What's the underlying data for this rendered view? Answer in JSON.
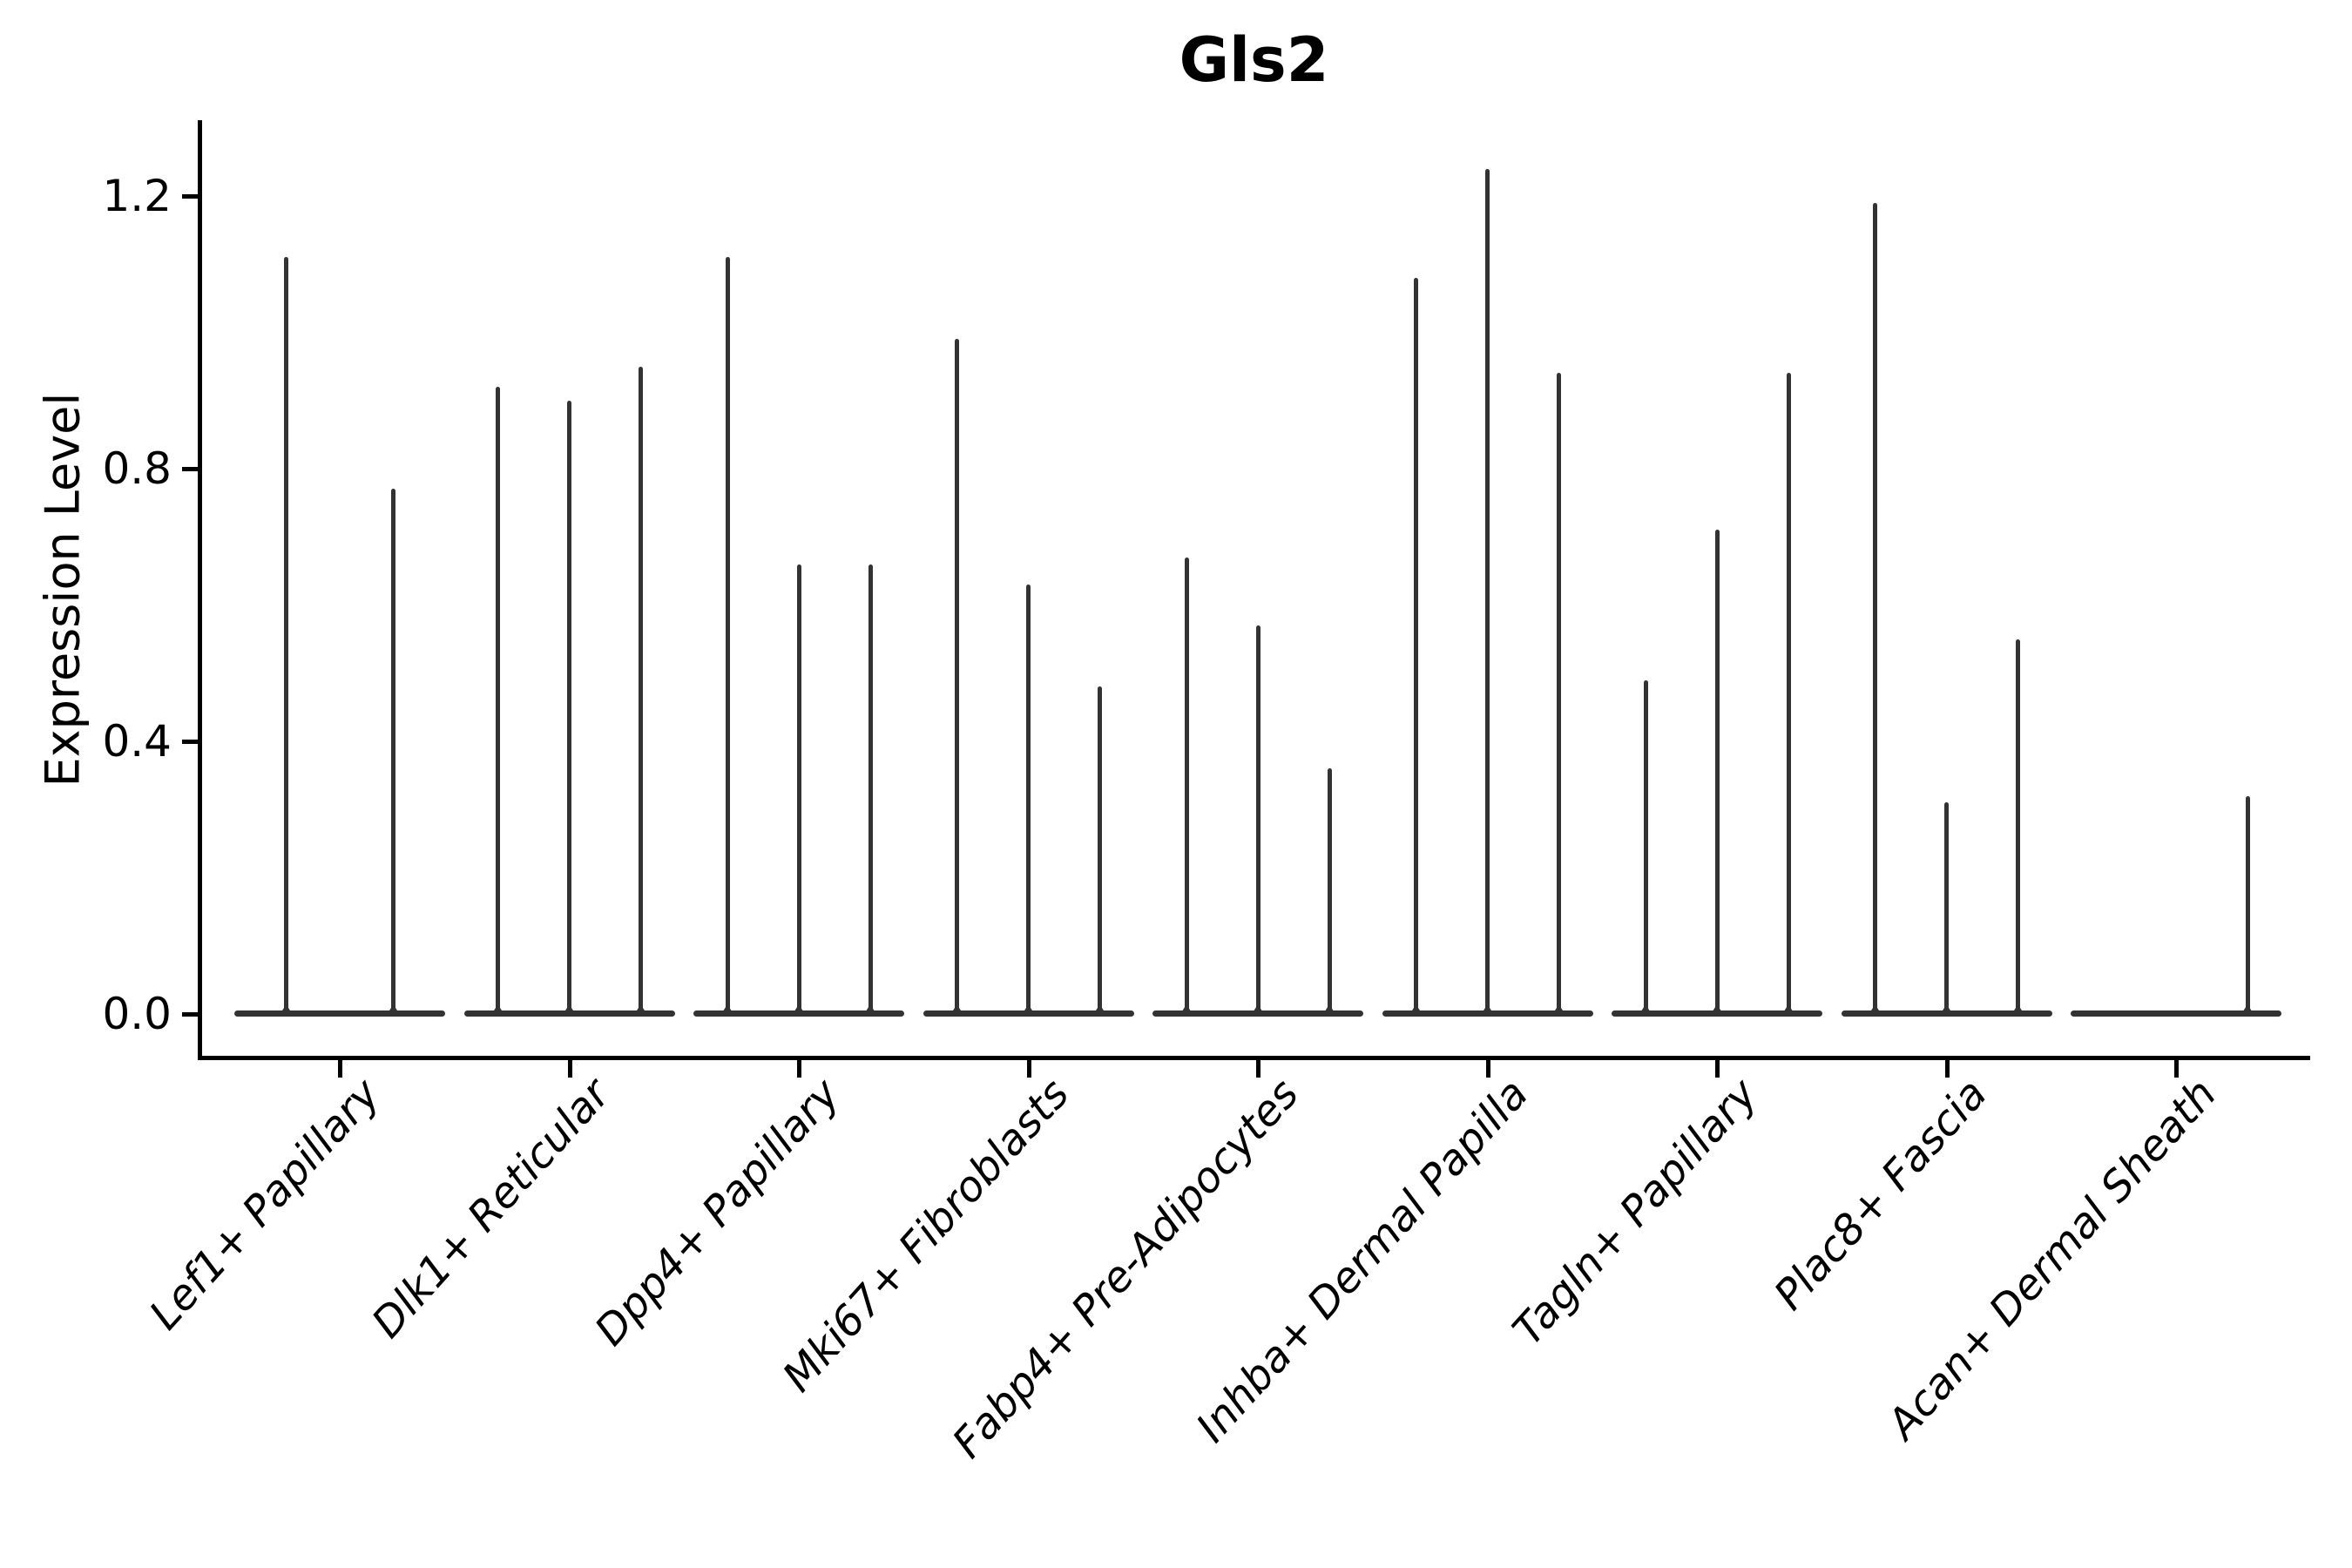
{
  "title": {
    "text": "Gls2"
  },
  "colors": {
    "background": "#ffffff",
    "axis_ink": "#000000",
    "violin_ink": "#333333",
    "text": "#000000"
  },
  "chart_data": {
    "type": "violin",
    "title": "Gls2",
    "subtitle": "",
    "xlabel": "",
    "ylabel": "Expression Level",
    "ylim": [
      0,
      1.31
    ],
    "ytick_values": [
      0.0,
      0.4,
      0.8,
      1.2
    ],
    "ytick_labels": [
      "0.0",
      "0.4",
      "0.8",
      "1.2"
    ],
    "grid": false,
    "legend_position": "none",
    "x_label_style": "italic, rotated 48deg, right-anchored under tick",
    "violin_style": "very thin violins: nearly all density flattened at 0 forming a thick baseline per category, with a thin vertical tail (spike) rising to each violin's maximum expression value",
    "categories": [
      "Lef1+ Papillary",
      "Dlk1+ Reticular",
      "Dpp4+ Papillary",
      "Mki67+ Fibroblasts",
      "Fabp4+ Pre-Adipocytes",
      "Inhba+ Dermal Papilla",
      "Tagln+ Papillary",
      "Plac8+ Fascia",
      "Acan+ Dermal Sheath"
    ],
    "series": [
      {
        "category": "Lef1+ Papillary",
        "violin_max_values": [
          1.11,
          0.77
        ]
      },
      {
        "category": "Dlk1+ Reticular",
        "violin_max_values": [
          0.92,
          0.9,
          0.95
        ]
      },
      {
        "category": "Dpp4+ Papillary",
        "violin_max_values": [
          1.11,
          0.66,
          0.66
        ]
      },
      {
        "category": "Mki67+ Fibroblasts",
        "violin_max_values": [
          0.99,
          0.63,
          0.48
        ]
      },
      {
        "category": "Fabp4+ Pre-Adipocytes",
        "violin_max_values": [
          0.67,
          0.57,
          0.36
        ]
      },
      {
        "category": "Inhba+ Dermal Papilla",
        "violin_max_values": [
          1.08,
          1.24,
          0.94
        ]
      },
      {
        "category": "Tagln+ Papillary",
        "violin_max_values": [
          0.49,
          0.71,
          0.94
        ]
      },
      {
        "category": "Plac8+ Fascia",
        "violin_max_values": [
          1.19,
          0.31,
          0.55
        ]
      },
      {
        "category": "Acan+ Dermal Sheath",
        "violin_max_values": [
          0.0,
          0.0,
          0.32
        ]
      }
    ]
  }
}
